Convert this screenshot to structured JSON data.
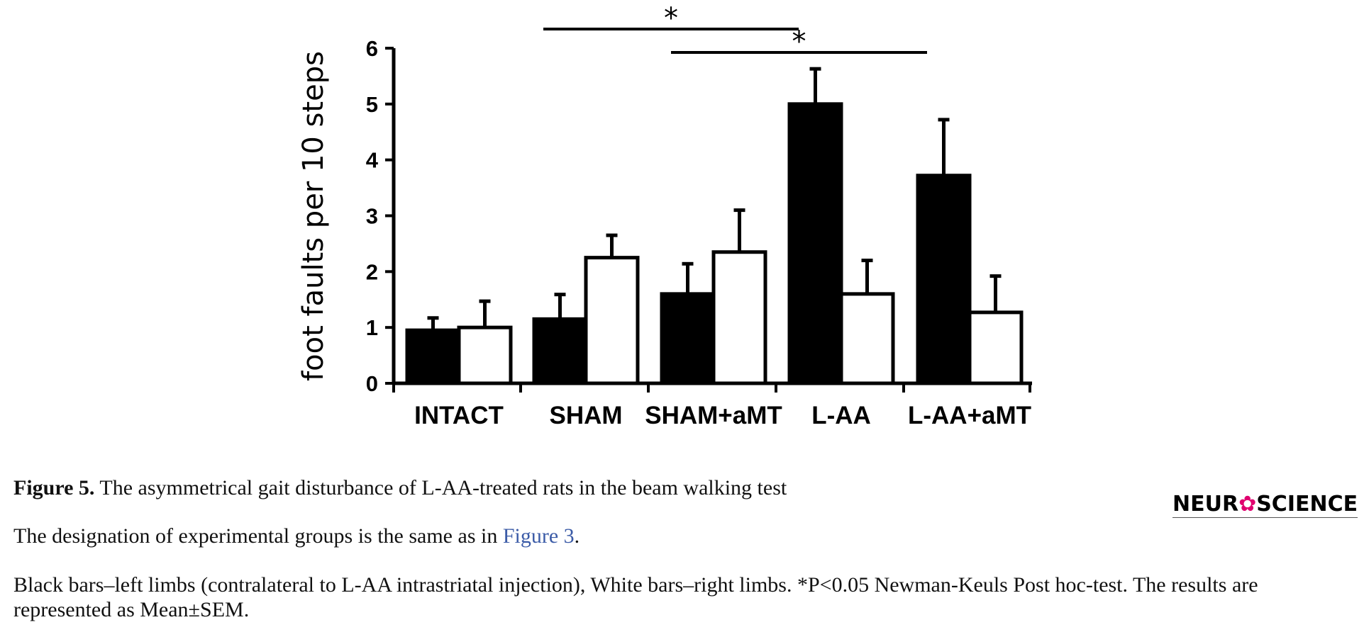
{
  "chart_data": {
    "type": "bar",
    "categories": [
      "INTACT",
      "SHAM",
      "SHAM+aMT",
      "L-AA",
      "L-AA+aMT"
    ],
    "series": [
      {
        "values": [
          0.95,
          1.15,
          1.6,
          5.0,
          3.72
        ],
        "errors": [
          0.22,
          0.44,
          0.54,
          0.63,
          1.0
        ],
        "color": "#000000"
      },
      {
        "values": [
          1.0,
          2.25,
          2.35,
          1.6,
          1.27
        ],
        "errors": [
          0.47,
          0.4,
          0.75,
          0.6,
          0.65
        ],
        "color": "#ffffff"
      }
    ],
    "ylabel": "foot faults per 10 steps",
    "xlabel": "",
    "ylim": [
      0,
      6
    ],
    "yticks": [
      "0",
      "1",
      "2",
      "3",
      "4",
      "5",
      "6"
    ],
    "significance": [
      {
        "from": "SHAM",
        "to": "L-AA",
        "label": "*"
      },
      {
        "from": "SHAM+aMT",
        "to": "L-AA+aMT",
        "label": "*"
      }
    ],
    "grid": false
  },
  "caption": {
    "figure_label": "Figure 5.",
    "title": " The asymmetrical gait disturbance of L-AA-treated rats in the beam walking test",
    "line1_prefix": "The designation of experimental groups is the same as in ",
    "line1_link": "Figure 3",
    "line1_suffix": ".",
    "line2": "Black bars–left limbs (contralateral to L-AA intrastriatal injection), White bars–right limbs. *P<0.05 Newman-Keuls Post hoc-test. The results are represented as Mean±SEM."
  },
  "logo": {
    "part1": "NEUR",
    "part2": "SCIENCE",
    "symbol": "✿"
  }
}
